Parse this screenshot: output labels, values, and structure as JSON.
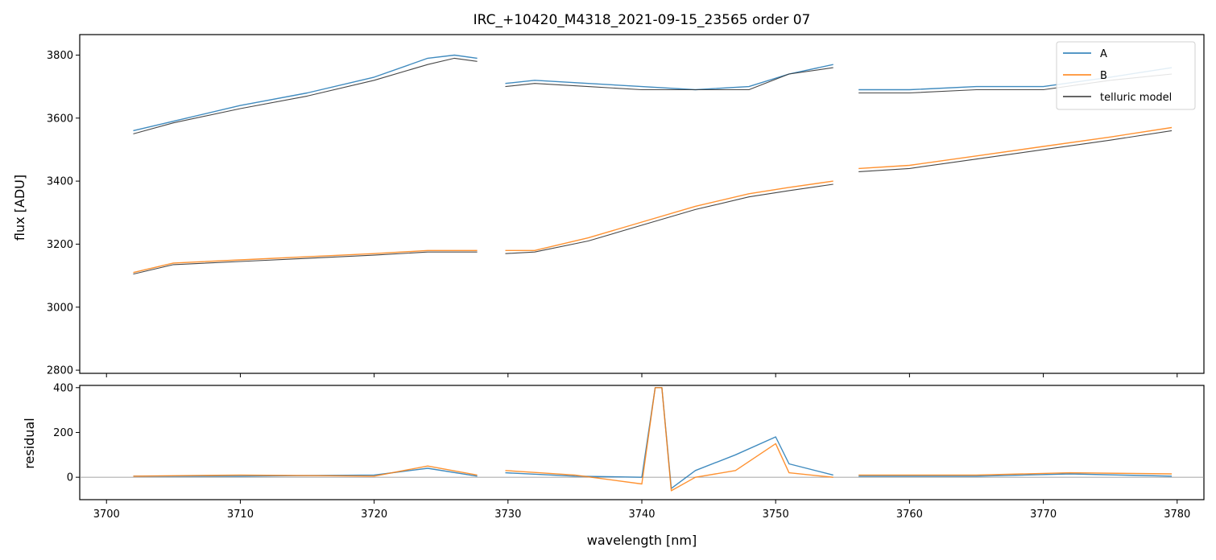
{
  "chart_data": {
    "type": "line",
    "title": "IRC_+10420_M4318_2021-09-15_23565  order 07",
    "xlabel": "wavelength [nm]",
    "xlim": [
      3698,
      3782
    ],
    "x_ticks": [
      "3700",
      "3710",
      "3720",
      "3730",
      "3740",
      "3750",
      "3760",
      "3770",
      "3780"
    ],
    "legend_position": "top-right",
    "colors": {
      "A": "#1f77b4",
      "B": "#ff7f0e",
      "model": "#333333",
      "zero_line": "#888888"
    },
    "panels": [
      {
        "name": "flux",
        "ylabel": "flux [ADU]",
        "ylim": [
          2790,
          3865
        ],
        "y_ticks": [
          "2800",
          "3000",
          "3200",
          "3400",
          "3600",
          "3800"
        ],
        "series": [
          {
            "name": "A",
            "segments": [
              {
                "x": [
                  3702.0,
                  3705.0,
                  3710.0,
                  3715.0,
                  3720.0,
                  3724.0,
                  3726.0,
                  3727.7
                ],
                "y": [
                  3560,
                  3590,
                  3640,
                  3680,
                  3730,
                  3790,
                  3800,
                  3790
                ]
              },
              {
                "x": [
                  3729.8,
                  3732.0,
                  3736.0,
                  3740.0,
                  3744.0,
                  3748.0,
                  3751.0,
                  3754.3
                ],
                "y": [
                  3710,
                  3720,
                  3710,
                  3700,
                  3690,
                  3700,
                  3740,
                  3770
                ]
              },
              {
                "x": [
                  3756.2,
                  3760.0,
                  3765.0,
                  3770.0,
                  3775.0,
                  3779.6
                ],
                "y": [
                  3690,
                  3690,
                  3700,
                  3700,
                  3730,
                  3760
                ]
              }
            ]
          },
          {
            "name": "B",
            "segments": [
              {
                "x": [
                  3702.0,
                  3705.0,
                  3710.0,
                  3715.0,
                  3720.0,
                  3724.0,
                  3727.7
                ],
                "y": [
                  3110,
                  3140,
                  3150,
                  3160,
                  3170,
                  3180,
                  3180
                ]
              },
              {
                "x": [
                  3729.8,
                  3732.0,
                  3736.0,
                  3740.0,
                  3744.0,
                  3748.0,
                  3751.0,
                  3754.3
                ],
                "y": [
                  3180,
                  3180,
                  3220,
                  3270,
                  3320,
                  3360,
                  3380,
                  3400
                ]
              },
              {
                "x": [
                  3756.2,
                  3760.0,
                  3765.0,
                  3770.0,
                  3775.0,
                  3779.6
                ],
                "y": [
                  3440,
                  3450,
                  3480,
                  3510,
                  3540,
                  3570
                ]
              }
            ]
          },
          {
            "name": "telluric model",
            "segments": [
              {
                "x": [
                  3702.0,
                  3705.0,
                  3710.0,
                  3715.0,
                  3720.0,
                  3724.0,
                  3726.0,
                  3727.7
                ],
                "y": [
                  3550,
                  3585,
                  3630,
                  3670,
                  3720,
                  3770,
                  3790,
                  3780
                ]
              },
              {
                "x": [
                  3729.8,
                  3732.0,
                  3736.0,
                  3740.0,
                  3744.0,
                  3748.0,
                  3751.0,
                  3754.3
                ],
                "y": [
                  3700,
                  3710,
                  3700,
                  3690,
                  3690,
                  3690,
                  3740,
                  3760
                ]
              },
              {
                "x": [
                  3756.2,
                  3760.0,
                  3765.0,
                  3770.0,
                  3775.0,
                  3779.6
                ],
                "y": [
                  3680,
                  3680,
                  3690,
                  3690,
                  3720,
                  3740
                ]
              },
              {
                "x": [
                  3702.0,
                  3705.0,
                  3710.0,
                  3715.0,
                  3720.0,
                  3724.0,
                  3727.7
                ],
                "y": [
                  3105,
                  3135,
                  3145,
                  3155,
                  3165,
                  3175,
                  3175
                ]
              },
              {
                "x": [
                  3729.8,
                  3732.0,
                  3736.0,
                  3740.0,
                  3744.0,
                  3748.0,
                  3751.0,
                  3754.3
                ],
                "y": [
                  3170,
                  3175,
                  3210,
                  3260,
                  3310,
                  3350,
                  3370,
                  3390
                ]
              },
              {
                "x": [
                  3756.2,
                  3760.0,
                  3765.0,
                  3770.0,
                  3775.0,
                  3779.6
                ],
                "y": [
                  3430,
                  3440,
                  3470,
                  3500,
                  3530,
                  3560
                ]
              }
            ]
          }
        ]
      },
      {
        "name": "residual",
        "ylabel": "residual",
        "ylim": [
          -100,
          410
        ],
        "y_ticks": [
          "0",
          "200",
          "400"
        ],
        "series": [
          {
            "name": "A",
            "segments": [
              {
                "x": [
                  3702.0,
                  3710.0,
                  3720.0,
                  3724.0,
                  3727.7
                ],
                "y": [
                  5,
                  5,
                  10,
                  40,
                  5
                ]
              },
              {
                "x": [
                  3729.8,
                  3735.0,
                  3740.0,
                  3741.0,
                  3741.5,
                  3742.2,
                  3744.0,
                  3747.0,
                  3750.0,
                  3751.0,
                  3754.3
                ],
                "y": [
                  20,
                  5,
                  0,
                  400,
                  400,
                  -50,
                  30,
                  100,
                  180,
                  60,
                  10
                ]
              },
              {
                "x": [
                  3756.2,
                  3765.0,
                  3772.0,
                  3779.6
                ],
                "y": [
                  5,
                  5,
                  15,
                  5
                ]
              }
            ]
          },
          {
            "name": "B",
            "segments": [
              {
                "x": [
                  3702.0,
                  3710.0,
                  3720.0,
                  3724.0,
                  3727.7
                ],
                "y": [
                  5,
                  10,
                  5,
                  50,
                  10
                ]
              },
              {
                "x": [
                  3729.8,
                  3735.0,
                  3740.0,
                  3741.0,
                  3741.5,
                  3742.2,
                  3744.0,
                  3747.0,
                  3750.0,
                  3751.0,
                  3754.3
                ],
                "y": [
                  30,
                  10,
                  -30,
                  400,
                  400,
                  -60,
                  0,
                  30,
                  150,
                  20,
                  0
                ]
              },
              {
                "x": [
                  3756.2,
                  3765.0,
                  3772.0,
                  3779.6
                ],
                "y": [
                  10,
                  10,
                  20,
                  15
                ]
              }
            ]
          }
        ]
      }
    ],
    "legend": [
      "A",
      "B",
      "telluric model"
    ]
  }
}
